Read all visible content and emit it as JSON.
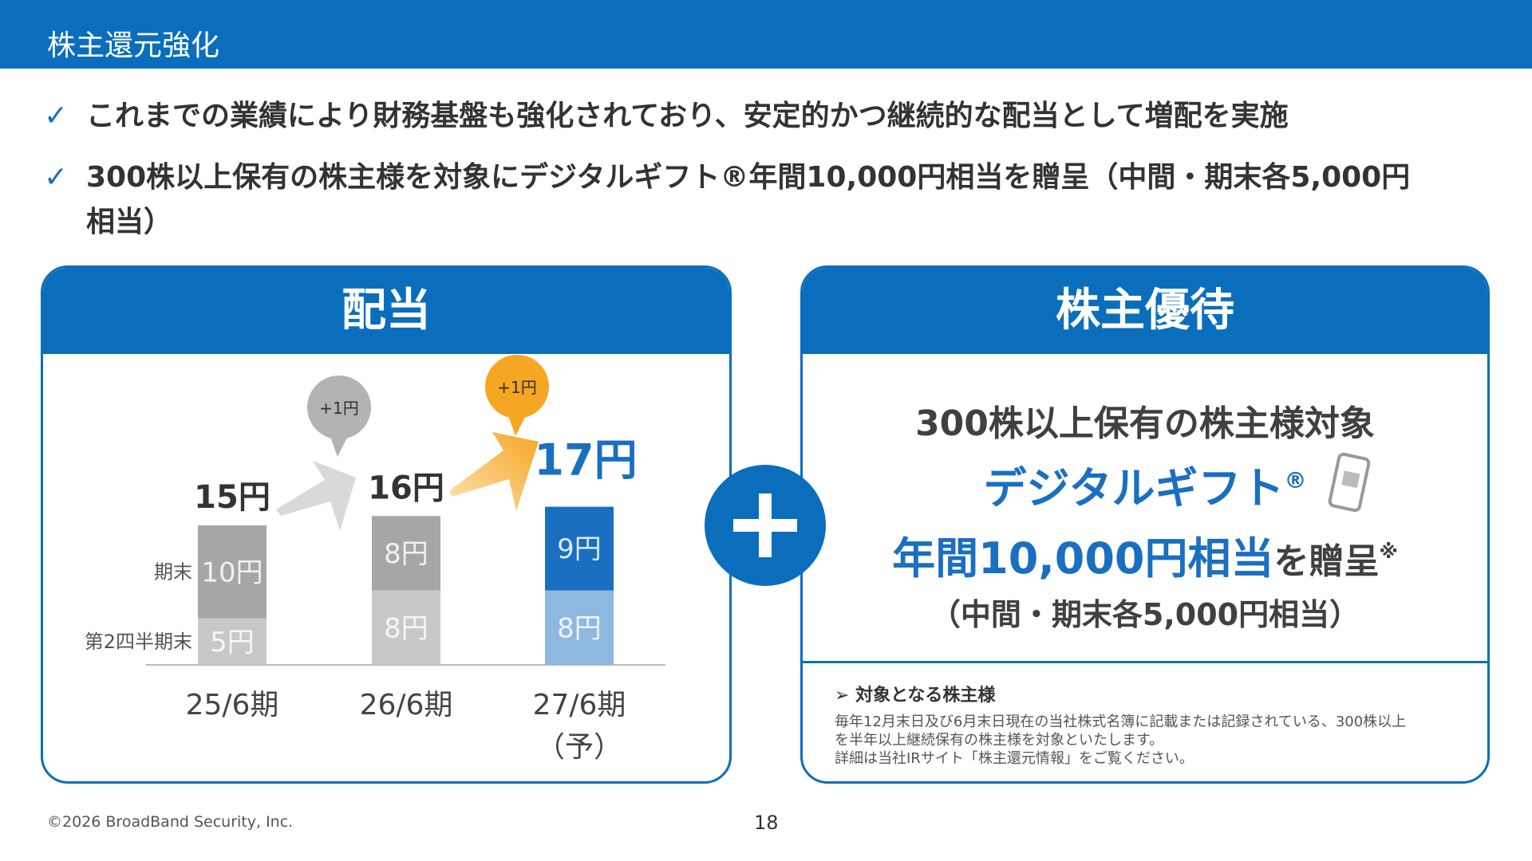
{
  "header": {
    "title": "株主還元強化"
  },
  "bullets": [
    "これまでの業績により財務基盤も強化されており、安定的かつ継続的な配当として増配を実施",
    "300株以上保有の株主様を対象にデジタルギフト®年間10,000円相当を贈呈（中間・期末各5,000円相当）"
  ],
  "dividend": {
    "title": "配当",
    "chart_data": {
      "type": "bar",
      "stacked": true,
      "categories": [
        "25/6期",
        "26/6期",
        "27/6期"
      ],
      "category_notes": [
        null,
        null,
        "（予）"
      ],
      "series": [
        {
          "name": "第2四半期末",
          "values": [
            5,
            8,
            8
          ],
          "value_labels": [
            "5円",
            "8円",
            "8円"
          ],
          "colors": [
            "#c8c8c8",
            "#c8c8c8",
            "#8fb8e0"
          ]
        },
        {
          "name": "期末",
          "values": [
            10,
            8,
            9
          ],
          "value_labels": [
            "10円",
            "8円",
            "9円"
          ],
          "colors": [
            "#a6a6a6",
            "#a6a6a6",
            "#1a6fc0"
          ]
        }
      ],
      "totals": [
        15,
        16,
        17
      ],
      "total_labels": [
        "15円",
        "16円",
        "17円"
      ],
      "total_colors": [
        "#333333",
        "#333333",
        "#1a6fc0"
      ],
      "annotations": [
        {
          "text": "+1円",
          "color": "#b3b3b3"
        },
        {
          "text": "+1円",
          "color": "#f5a623"
        }
      ]
    }
  },
  "benefit": {
    "title": "株主優待",
    "line1": "300株以上保有の株主様対象",
    "gift": "デジタルギフト",
    "gift_mark": "®",
    "amount": "年間10,000円相当",
    "amount_suffix": "を贈呈",
    "note_mark": "※",
    "detail": "（中間・期末各5,000円相当）",
    "target_heading": "対象となる株主様",
    "target_text": [
      "毎年12月末日及び6月末日現在の当社株式名簿に記載または記録されている、300株以上",
      "を半年以上継続保有の株主様を対象といたします。",
      "詳細は当社IRサイト「株主還元情報」をご覧ください。"
    ]
  },
  "footer": {
    "copyright": "©2026 BroadBand Security, Inc.",
    "page": "18"
  }
}
